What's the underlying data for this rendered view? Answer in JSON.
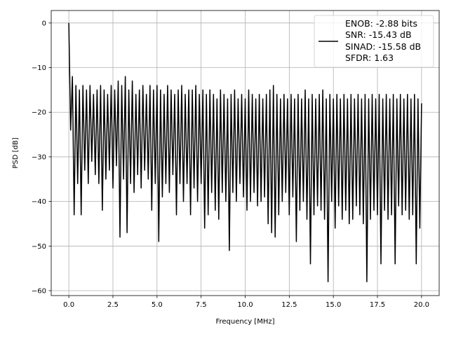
{
  "chart_data": {
    "type": "line",
    "title": "",
    "xlabel": "Frequency [MHz]",
    "ylabel": "PSD [dB]",
    "xlim": [
      -1.0,
      21.0
    ],
    "ylim": [
      -61.1,
      2.8
    ],
    "xticks": [
      "0.0",
      "2.5",
      "5.0",
      "7.5",
      "10.0",
      "12.5",
      "15.0",
      "17.5",
      "20.0"
    ],
    "xtick_values": [
      0,
      2.5,
      5,
      7.5,
      10,
      12.5,
      15,
      17.5,
      20
    ],
    "yticks": [
      "0",
      "−10",
      "−20",
      "−30",
      "−40",
      "−50",
      "−60"
    ],
    "ytick_values": [
      0,
      -10,
      -20,
      -30,
      -40,
      -50,
      -60
    ],
    "grid": true,
    "legend_placement": "upper-right",
    "line_color": "#000000",
    "legend": [
      "ENOB: -2.88 bits",
      "SNR: -15.43 dB",
      "SINAD: -15.58 dB",
      "SFDR: 1.63"
    ],
    "series": [
      {
        "x": [
          0,
          0.1,
          0.2,
          0.3,
          0.4,
          0.5,
          0.6,
          0.7,
          0.8,
          0.9,
          1,
          1.1,
          1.2,
          1.3,
          1.4,
          1.5,
          1.6,
          1.7,
          1.8,
          1.9,
          2,
          2.1,
          2.2,
          2.3,
          2.4,
          2.5,
          2.6,
          2.7,
          2.8,
          2.9,
          3,
          3.1,
          3.2,
          3.3,
          3.4,
          3.5,
          3.6,
          3.7,
          3.8,
          3.9,
          4,
          4.1,
          4.2,
          4.3,
          4.4,
          4.5,
          4.6,
          4.7,
          4.8,
          4.9,
          5,
          5.1,
          5.2,
          5.3,
          5.4,
          5.5,
          5.6,
          5.7,
          5.8,
          5.9,
          6,
          6.1,
          6.2,
          6.3,
          6.4,
          6.5,
          6.6,
          6.7,
          6.8,
          6.9,
          7,
          7.1,
          7.2,
          7.3,
          7.4,
          7.5,
          7.6,
          7.7,
          7.8,
          7.9,
          8,
          8.1,
          8.2,
          8.3,
          8.4,
          8.5,
          8.6,
          8.7,
          8.8,
          8.9,
          9,
          9.1,
          9.2,
          9.3,
          9.4,
          9.5,
          9.6,
          9.7,
          9.8,
          9.9,
          10,
          10.1,
          10.2,
          10.3,
          10.4,
          10.5,
          10.6,
          10.7,
          10.8,
          10.9,
          11,
          11.1,
          11.2,
          11.3,
          11.4,
          11.5,
          11.6,
          11.7,
          11.8,
          11.9,
          12,
          12.1,
          12.2,
          12.3,
          12.4,
          12.5,
          12.6,
          12.7,
          12.8,
          12.9,
          13,
          13.1,
          13.2,
          13.3,
          13.4,
          13.5,
          13.6,
          13.7,
          13.8,
          13.9,
          14,
          14.1,
          14.2,
          14.3,
          14.4,
          14.5,
          14.6,
          14.7,
          14.8,
          14.9,
          15,
          15.1,
          15.2,
          15.3,
          15.4,
          15.5,
          15.6,
          15.7,
          15.8,
          15.9,
          16,
          16.1,
          16.2,
          16.3,
          16.4,
          16.5,
          16.6,
          16.7,
          16.8,
          16.9,
          17,
          17.1,
          17.2,
          17.3,
          17.4,
          17.5,
          17.6,
          17.7,
          17.8,
          17.9,
          18,
          18.1,
          18.2,
          18.3,
          18.4,
          18.5,
          18.6,
          18.7,
          18.8,
          18.9,
          19,
          19.1,
          19.2,
          19.3,
          19.4,
          19.5,
          19.6,
          19.7,
          19.8,
          19.9,
          20
        ],
        "y": [
          0,
          -24,
          -12,
          -43,
          -14,
          -36,
          -15,
          -43,
          -14,
          -33,
          -15,
          -36,
          -14,
          -31,
          -16,
          -34,
          -15,
          -36,
          -14,
          -42,
          -15,
          -35,
          -16,
          -33,
          -14,
          -37,
          -15,
          -32,
          -13,
          -48,
          -14,
          -35,
          -12,
          -47,
          -15,
          -36,
          -13,
          -38,
          -16,
          -34,
          -15,
          -37,
          -14,
          -33,
          -16,
          -35,
          -14,
          -42,
          -15,
          -36,
          -14,
          -49,
          -15,
          -39,
          -16,
          -36,
          -14,
          -38,
          -15,
          -34,
          -16,
          -43,
          -15,
          -36,
          -14,
          -40,
          -16,
          -36,
          -15,
          -43,
          -15,
          -37,
          -14,
          -40,
          -16,
          -36,
          -15,
          -46,
          -16,
          -43,
          -15,
          -38,
          -16,
          -42,
          -17,
          -44,
          -15,
          -38,
          -16,
          -40,
          -17,
          -51,
          -16,
          -38,
          -15,
          -40,
          -17,
          -36,
          -16,
          -39,
          -17,
          -42,
          -15,
          -40,
          -16,
          -38,
          -17,
          -41,
          -16,
          -40,
          -17,
          -39,
          -16,
          -45,
          -15,
          -47,
          -14,
          -48,
          -16,
          -43,
          -17,
          -40,
          -16,
          -38,
          -17,
          -43,
          -16,
          -39,
          -17,
          -49,
          -16,
          -42,
          -17,
          -40,
          -15,
          -44,
          -17,
          -54,
          -16,
          -43,
          -17,
          -41,
          -16,
          -42,
          -15,
          -44,
          -17,
          -58,
          -16,
          -40,
          -17,
          -46,
          -16,
          -41,
          -17,
          -44,
          -16,
          -42,
          -17,
          -45,
          -16,
          -44,
          -17,
          -41,
          -16,
          -43,
          -17,
          -45,
          -16,
          -58,
          -17,
          -44,
          -16,
          -42,
          -17,
          -43,
          -16,
          -54,
          -17,
          -42,
          -16,
          -44,
          -17,
          -43,
          -16,
          -54,
          -17,
          -41,
          -16,
          -43,
          -17,
          -42,
          -16,
          -44,
          -17,
          -43,
          -16,
          -54,
          -17,
          -46,
          -18
        ]
      }
    ]
  }
}
